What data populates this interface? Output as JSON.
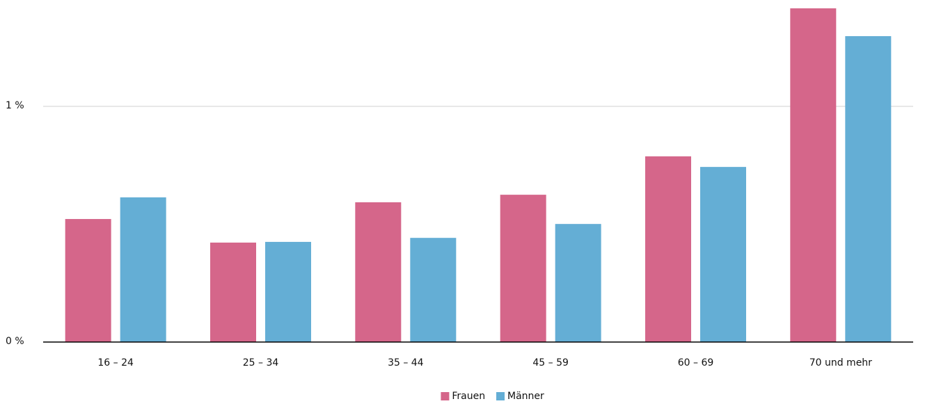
{
  "chart_data": {
    "type": "bar",
    "categories": [
      "16 – 24",
      "25 – 34",
      "35 – 44",
      "45 – 59",
      "60 – 69",
      "70 und mehr"
    ],
    "series": [
      {
        "name": "Frauen",
        "color": "#d5668a",
        "values": [
          0.522,
          0.422,
          0.593,
          0.625,
          0.788,
          1.416
        ]
      },
      {
        "name": "Männer",
        "color": "#64aed5",
        "values": [
          0.614,
          0.425,
          0.442,
          0.501,
          0.743,
          1.298
        ]
      }
    ],
    "ylim": [
      0,
      1.45
    ],
    "yticks": [
      {
        "value": 0,
        "label": "0 %"
      },
      {
        "value": 1,
        "label": "1 %"
      }
    ],
    "grid": true,
    "legend": "bottom"
  }
}
